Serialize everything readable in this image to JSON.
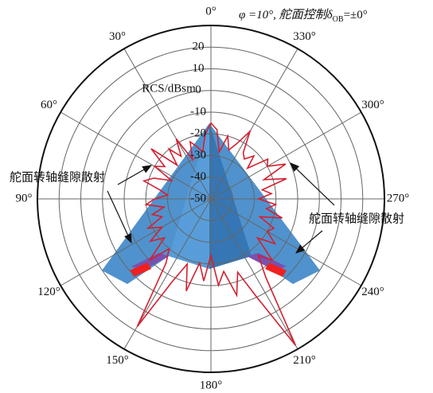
{
  "chart_data": {
    "type": "polar",
    "title": "φ =10°, 舵面控制δ",
    "title_subscript": "OB",
    "title_suffix": "=±0°",
    "radial_label": "RCS/dBsm",
    "annotations": [
      "舵面转轴缝隙散射",
      "舵面转轴缝隙散射"
    ],
    "direction": "counterclockwise",
    "zero_location": "top",
    "rlim": [
      -50,
      30
    ],
    "rticks": [
      20,
      10,
      0,
      -10,
      -20,
      -30,
      -40,
      -50
    ],
    "thetaticks": [
      {
        "value": 0,
        "label": "0°"
      },
      {
        "value": 30,
        "label": "30°"
      },
      {
        "value": 60,
        "label": "60°"
      },
      {
        "value": 90,
        "label": "90°"
      },
      {
        "value": 120,
        "label": "120°"
      },
      {
        "value": 150,
        "label": "150°"
      },
      {
        "value": 180,
        "label": "180°"
      },
      {
        "value": 210,
        "label": "210°"
      },
      {
        "value": 240,
        "label": "240°"
      },
      {
        "value": 270,
        "label": "270°"
      },
      {
        "value": 300,
        "label": "300°"
      },
      {
        "value": 330,
        "label": "330°"
      }
    ],
    "theta": [
      0,
      5,
      10,
      15,
      20,
      25,
      30,
      35,
      40,
      45,
      50,
      55,
      60,
      65,
      70,
      75,
      80,
      85,
      90,
      95,
      100,
      105,
      110,
      115,
      120,
      125,
      130,
      135,
      140,
      145,
      150,
      155,
      160,
      165,
      170,
      175,
      180,
      185,
      190,
      195,
      200,
      205,
      210,
      215,
      220,
      225,
      230,
      235,
      240,
      245,
      250,
      255,
      260,
      265,
      270,
      275,
      280,
      285,
      290,
      295,
      300,
      305,
      310,
      315,
      320,
      325,
      330,
      335,
      340,
      345,
      350,
      355
    ],
    "series": [
      {
        "color": "#d42030",
        "values": [
          -15,
          -20,
          -28,
          -25,
          -22,
          -30,
          -18,
          -26,
          -20,
          -28,
          -14,
          -24,
          -20,
          -30,
          -22,
          -18,
          -26,
          -30,
          -24,
          -20,
          -28,
          -22,
          -26,
          -18,
          -24,
          -16,
          -22,
          -10,
          -20,
          -14,
          18,
          -8,
          -18,
          -6,
          -20,
          -12,
          -24,
          -10,
          -16,
          -4,
          -14,
          0,
          28,
          -6,
          -16,
          -10,
          -22,
          -14,
          -20,
          -18,
          -26,
          -16,
          -24,
          -20,
          -28,
          -22,
          -26,
          -14,
          -24,
          -12,
          -20,
          -18,
          -28,
          -22,
          -26,
          -24,
          -14,
          -22,
          -26,
          -20,
          -28,
          -18
        ]
      }
    ]
  }
}
